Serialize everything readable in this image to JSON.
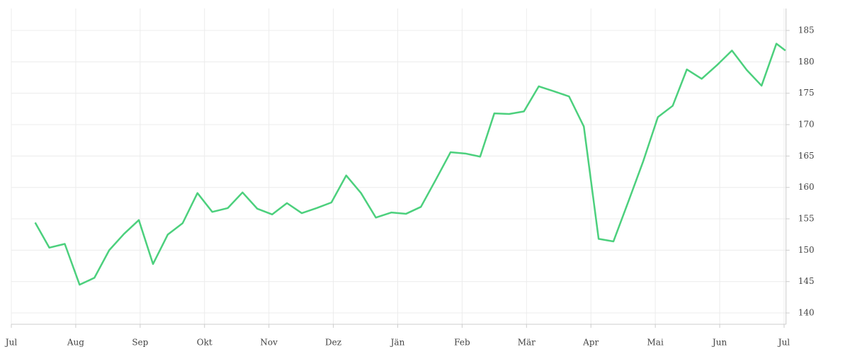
{
  "chart_data": {
    "type": "line",
    "x": [
      0.37,
      0.59,
      0.83,
      1.06,
      1.29,
      1.52,
      1.75,
      1.98,
      2.2,
      2.43,
      2.66,
      2.89,
      3.12,
      3.36,
      3.59,
      3.82,
      4.05,
      4.28,
      4.51,
      4.74,
      4.97,
      5.2,
      5.43,
      5.66,
      5.9,
      6.13,
      6.36,
      6.59,
      6.82,
      7.05,
      7.28,
      7.5,
      7.73,
      7.96,
      8.19,
      8.43,
      8.66,
      8.89,
      9.12,
      9.35,
      9.58,
      9.81,
      10.04,
      10.27,
      10.49,
      10.72,
      10.96,
      11.19,
      11.42,
      11.65,
      11.88,
      12.02
    ],
    "series": [
      {
        "color": "#4cd07d",
        "values": [
          154.4,
          150.4,
          151.0,
          144.5,
          145.6,
          150.0,
          152.6,
          154.8,
          147.8,
          152.5,
          154.3,
          159.1,
          156.1,
          156.7,
          159.2,
          156.6,
          155.7,
          157.5,
          155.9,
          156.7,
          157.6,
          161.9,
          159.1,
          155.2,
          156.0,
          155.8,
          156.9,
          161.2,
          165.6,
          165.4,
          164.9,
          171.8,
          171.7,
          172.1,
          176.1,
          175.3,
          174.5,
          169.7,
          151.8,
          151.4,
          157.7,
          164.1,
          171.2,
          173.0,
          178.8,
          177.3,
          179.5,
          181.8,
          178.7,
          176.2,
          182.9,
          181.8
        ]
      }
    ],
    "xlim": [
      0,
      12.03
    ],
    "xticks": [
      {
        "value": 0,
        "label": "Jul"
      },
      {
        "value": 1,
        "label": "Aug"
      },
      {
        "value": 2,
        "label": "Sep"
      },
      {
        "value": 3,
        "label": "Okt"
      },
      {
        "value": 4,
        "label": "Nov"
      },
      {
        "value": 5,
        "label": "Dez"
      },
      {
        "value": 6,
        "label": "Jän"
      },
      {
        "value": 7,
        "label": "Feb"
      },
      {
        "value": 8,
        "label": "Mär"
      },
      {
        "value": 9,
        "label": "Apr"
      },
      {
        "value": 10,
        "label": "Mai"
      },
      {
        "value": 11,
        "label": "Jun"
      },
      {
        "value": 12,
        "label": "Jul"
      }
    ],
    "ylim": [
      138.2,
      188.5
    ],
    "yticks": [
      140,
      145,
      150,
      155,
      160,
      165,
      170,
      175,
      180,
      185
    ],
    "grid": true
  }
}
